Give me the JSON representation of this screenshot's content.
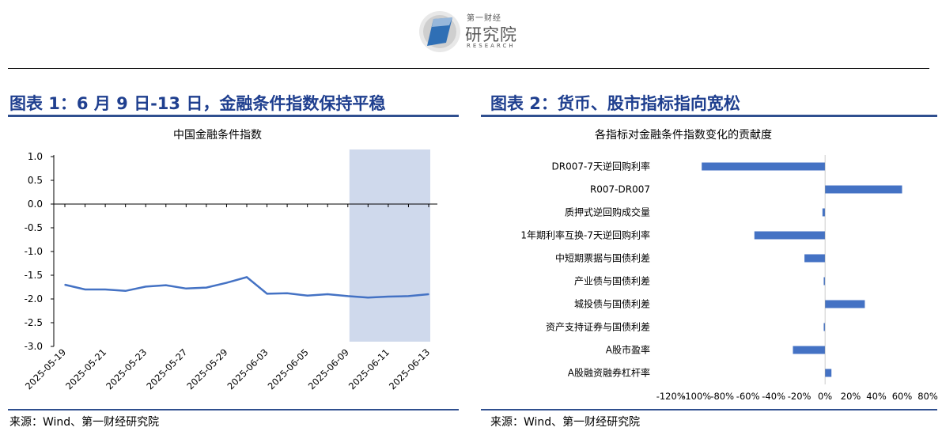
{
  "header": {
    "logo_small": "第一财经",
    "logo_big": "研究院",
    "logo_sub": "RESEARCH"
  },
  "left_panel": {
    "title": "图表 1：6 月 9 日-13 日，金融条件指数保持平稳",
    "source": "来源：Wind、第一财经研究院"
  },
  "right_panel": {
    "title": "图表 2：货币、股市指标指向宽松",
    "source": "来源：Wind、第一财经研究院"
  },
  "chart_data": [
    {
      "type": "line",
      "title": "中国金融条件指数",
      "series": [
        {
          "color": "#4472c4",
          "x": [
            "2025-05-19",
            "2025-05-20",
            "2025-05-21",
            "2025-05-22",
            "2025-05-23",
            "2025-05-26",
            "2025-05-27",
            "2025-05-28",
            "2025-05-29",
            "2025-05-30",
            "2025-06-03",
            "2025-06-04",
            "2025-06-05",
            "2025-06-06",
            "2025-06-09",
            "2025-06-10",
            "2025-06-11",
            "2025-06-12",
            "2025-06-13"
          ],
          "values": [
            -1.7,
            -1.8,
            -1.8,
            -1.83,
            -1.74,
            -1.71,
            -1.78,
            -1.76,
            -1.66,
            -1.54,
            -1.89,
            -1.88,
            -1.93,
            -1.9,
            -1.94,
            -1.97,
            -1.95,
            -1.94,
            -1.9
          ]
        }
      ],
      "x_tick_labels": [
        "2025-05-19",
        "2025-05-21",
        "2025-05-23",
        "2025-05-27",
        "2025-05-29",
        "2025-06-03",
        "2025-06-05",
        "2025-06-09",
        "2025-06-11",
        "2025-06-13"
      ],
      "ylim": [
        -3.0,
        1.0
      ],
      "y_ticks": [
        "1.0",
        "0.5",
        "0.0",
        "-0.5",
        "-1.0",
        "-1.5",
        "-2.0",
        "-2.5",
        "-3.0"
      ],
      "highlight_range": [
        "2025-06-09",
        "2025-06-13"
      ],
      "highlight_color": "#cfd9ec",
      "grid": false
    },
    {
      "type": "bar",
      "orientation": "horizontal",
      "title": "各指标对金融条件指数变化的贡献度",
      "categories": [
        "DR007-7天逆回购利率",
        "R007-DR007",
        "质押式逆回购成交量",
        "1年期利率互换-7天逆回购利率",
        "中短期票据与国债利差",
        "产业债与国债利差",
        "城投债与国债利差",
        "资产支持证券与国债利差",
        "A股市盈率",
        "A股融资融券杠杆率"
      ],
      "values": [
        -96,
        60,
        -2,
        -55,
        -16,
        -1,
        31,
        -1,
        -25,
        5
      ],
      "x_ticks": [
        "-120%",
        "-100%",
        "-80%",
        "-60%",
        "-40%",
        "-20%",
        "0%",
        "20%",
        "40%",
        "60%",
        "80%"
      ],
      "xlim": [
        -130,
        80
      ],
      "color": "#4472c4",
      "grid": false
    }
  ]
}
